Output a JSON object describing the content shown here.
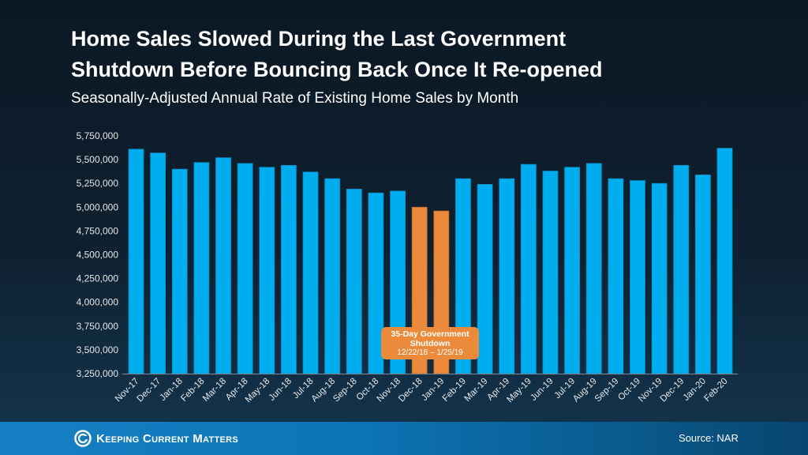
{
  "title_line1": "Home Sales Slowed During the Last Government",
  "title_line2": "Shutdown Before Bouncing Back Once It Re-opened",
  "subtitle": "Seasonally-Adjusted Annual Rate of Existing Home Sales by Month",
  "annotation": {
    "line1": "35-Day Government",
    "line2": "Shutdown",
    "line3": "12/22/18 – 1/25/19"
  },
  "footer": {
    "logo_text": "Keeping Current Matters",
    "source": "Source: NAR"
  },
  "colors": {
    "bar": "#00aeef",
    "highlight": "#ea8a3a",
    "background": "#0e2030"
  },
  "chart_data": {
    "type": "bar",
    "categories": [
      "Nov-17",
      "Dec-17",
      "Jan-18",
      "Feb-18",
      "Mar-18",
      "Apr-18",
      "May-18",
      "Jun-18",
      "Jul-18",
      "Aug-18",
      "Sep-18",
      "Oct-18",
      "Nov-18",
      "Dec-18",
      "Jan-19",
      "Feb-19",
      "Mar-19",
      "Apr-19",
      "May-19",
      "Jun-19",
      "Jul-19",
      "Aug-19",
      "Sep-19",
      "Oct-19",
      "Nov-19",
      "Dec-19",
      "Jan-20",
      "Feb-20"
    ],
    "values": [
      5610000,
      5570000,
      5400000,
      5470000,
      5520000,
      5460000,
      5420000,
      5440000,
      5370000,
      5300000,
      5190000,
      5150000,
      5170000,
      5000000,
      4960000,
      5300000,
      5240000,
      5300000,
      5450000,
      5380000,
      5420000,
      5460000,
      5300000,
      5280000,
      5250000,
      5440000,
      5340000,
      5620000
    ],
    "highlighted": [
      "Dec-18",
      "Jan-19"
    ],
    "ylim": [
      3250000,
      5750000
    ],
    "yticks": [
      "3,250,000",
      "3,500,000",
      "3,750,000",
      "4,000,000",
      "4,250,000",
      "4,500,000",
      "4,750,000",
      "5,000,000",
      "5,250,000",
      "5,500,000",
      "5,750,000"
    ],
    "ytick_values": [
      3250000,
      3500000,
      3750000,
      4000000,
      4250000,
      4500000,
      4750000,
      5000000,
      5250000,
      5500000,
      5750000
    ],
    "grid": false,
    "xlabel": "",
    "ylabel": ""
  }
}
